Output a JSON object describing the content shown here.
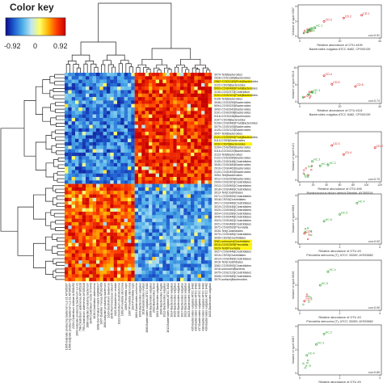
{
  "color_key": {
    "title": "Color key",
    "ticks": [
      "-0.92",
      "0",
      "0.92"
    ],
    "colors": [
      "#0a0a8c",
      "#1f5fd1",
      "#4fb0e8",
      "#bfe6f2",
      "#ffff66",
      "#ffb000",
      "#ff3b00",
      "#c80000"
    ]
  },
  "heatmap": {
    "row_labels": [
      "3079-Tert|Bacteroides",
      "2928-COG1189|Bacteroides",
      "2562~COG1183|Prob|Bacteroides",
      "3122-CSS5|Bacteroides",
      "5003-COG0480|Prob|Bacteroides",
      "3130-COG2373|Clostridium",
      "3101-COG0101|Prob|Bacteroides",
      "5106-Tert|Bacteroides",
      "3046-COG3250|Bacteroides",
      "5094-COG0220|Bacteroides",
      "3092-COG2942|Bacteroides",
      "3101-COG0208|Bacteroides",
      "5118-COG0448|Bacteroides",
      "3107-CSS5|Bacteroides",
      "5108-COG0480|Prob|Bacteroides",
      "3079-COG0100|Bacteroides",
      "4125-COG2123|Bacteroides",
      "3047-Tert|Bacteroides",
      "2121-COG0592|Prob|Bacteroides",
      "5119-CSS5|Bacteroides",
      "3032-CSS5|Bacteroides",
      "3154-COG0580|Bacteroides",
      "5116-COG0222|Bacteroides",
      "3123-Tert|Bacteroides",
      "2122-COG3280|Bacteroides",
      "3130-COG0448|Clostridiales",
      "3040-COG0480|Bacteroides",
      "2010-COG0462|Bacteroides",
      "2120-COG0492|Bacteroides",
      "3054-Tert|Bacteroides",
      "3012-COG2309|Bacteroides",
      "2009-COG2301|Clostridiales",
      "2013-COG0592|Clostridiales",
      "3018-COG0480|Clostridiales",
      "3013-Tert|Clostridiales",
      "2071-COG0592|Clostridiales",
      "3018-CSS5|Clostridiales",
      "3017-COG0480|Clostridiales",
      "3019-COG0446|Clostridiales",
      "3020-COG0462|Clostridiales",
      "3024-COG3280|Clostridiales",
      "3040-COG0448|Clostridiales",
      "3023-COG0462|Clostridiales",
      "3021-COG0480|Clostridiales",
      "3072-COG0592|Prevotella",
      "3030-Tert|Clostridiales",
      "3070-COG0480|Clostridiales",
      "3035-CSS5|Clostridiales",
      "3081-unknown|Clostridiales",
      "3010-COG2309|Prevotella",
      "3029-Tert|Prevotella",
      "3027-COG0448|Clostridiales",
      "3015-CSS5|Clostridiales",
      "3014-COG0480|Clostridiales",
      "3016-Tert|Clostridiales",
      "3082-COG0592|Clostridiales",
      "3016-unknown|Bacteria",
      "3075-COG2123|Clostridiales",
      "3008-COG0480|Clostridiales",
      "3079-surface|Bacteroides"
    ],
    "highlighted_rows": [
      2,
      4,
      6,
      18,
      20,
      48,
      49,
      50
    ],
    "col_labels": [
      "1665-butyrate producing bacterium L2-21 AY305307",
      "1596-butyrate producing bacterium L2-21 AY305307",
      "2153-Clostridium bolteae AJ508452",
      "1601-butyrate producing bacterium L2-21",
      "798-Clostridium aldenense AY305316",
      "799-Clostridium aldenense AY305316",
      "1686-butyrate producing bacterium",
      "1645-Clostridium nexile X73443",
      "1619-Clostridium aldenense",
      "3008-Germinated mutant GQ898317",
      "3007-Dialister invisus AY162469",
      "1600-butyrate producing bacterium",
      "1620-Clostridium lavalense",
      "1640-Ruminococcus obeum",
      "1621-Eubacterium rectale",
      "1622-Clostridium clostridioforme",
      "1002-Prevotella stercorea",
      "1669-Prevotella copri",
      "1607-Prevotella stercorea",
      "1624-Prevotella copri",
      "1664-Bacteroides uniformis",
      "1649-Bacteroides vulgatus",
      "1618-Bacteroides ovatus",
      "1660-Bacteroides vulgatus ATCC 8482",
      "1608-Bacteroides vulgatus",
      "2032-Bacteroides dorei",
      "1604-Bacteroides vulgatus",
      "1609-Bacteroides fragilis",
      "1612-Bacteroides vulgatus",
      "1613-Bacteroides vulgatus ATCC 8482",
      "1614-Bacteroides vulgatus",
      "1615-Bacteroides vulgatus",
      "1616-Bacteroides vulgatus",
      "1617-Bacteroides vulgatus",
      "1622-Bacteroides vulgatus",
      "1623-Bacteroides vulgatus",
      "435-Bacteroides vulgatus ATCC 8482",
      "436-Bacteroides vulgatus ATCC 8482",
      "437-Bacteroides vulgatus ATCC 8482",
      "438-Bacteroides vulgatus ATCC 8482",
      "439-Bacteroides vulgatus ATCC 8482",
      "1625-Bacteroides vulgatus"
    ]
  },
  "scatter_panels": [
    {
      "title": "",
      "ylabel": "Volume of spot 0367",
      "xlabel": "Relative abundance of OTU #439",
      "subtitle": "Bacteroides vulgatus ATCC 8482, CP000139",
      "corr": "cor=0.91",
      "xticks": [
        "0",
        "20",
        "40"
      ],
      "yticks": [
        "0",
        "2",
        "4"
      ],
      "points": [
        {
          "label": "CD.1",
          "color": "#d62020"
        },
        {
          "label": "CD.2",
          "color": "#d62020"
        },
        {
          "label": "CD.3",
          "color": "#d62020"
        },
        {
          "label": "HC.1",
          "color": "#2a9d2a"
        },
        {
          "label": "HC.2",
          "color": "#2a9d2a"
        },
        {
          "label": "HC.3",
          "color": "#2a9d2a"
        }
      ]
    },
    {
      "title": "",
      "ylabel": "Volume of spot 0013",
      "xlabel": "Relative abundance of OTU #114",
      "subtitle": "Bacteroides vulgatus ATCC 8482, CP000139",
      "corr": "cor=0.74",
      "xticks": [
        "0",
        "20",
        "40"
      ],
      "yticks": [
        "0",
        "5",
        "10"
      ],
      "points": [
        {
          "label": "CD.4",
          "color": "#d62020"
        },
        {
          "label": "CD.5",
          "color": "#d62020"
        },
        {
          "label": "CD.6",
          "color": "#d62020"
        },
        {
          "label": "HC.4",
          "color": "#2a9d2a"
        },
        {
          "label": "HC.5",
          "color": "#2a9d2a"
        }
      ]
    },
    {
      "title": "",
      "ylabel": "Volume of spot 0121",
      "xlabel": "Relative abundance of OTU #98",
      "subtitle": "Ruminococcus bicum (genus Blautia), AY305316",
      "corr": "cor=0.79",
      "xticks": [
        "0",
        "20",
        "40",
        "60",
        "80",
        "100",
        "120"
      ],
      "yticks": [
        "0",
        "2",
        "4"
      ],
      "points": [
        {
          "label": "CD.3",
          "color": "#d62020"
        },
        {
          "label": "CD.4",
          "color": "#d62020"
        },
        {
          "label": "CD.2",
          "color": "#d62020"
        },
        {
          "label": "HC.3",
          "color": "#2a9d2a"
        },
        {
          "label": "HC.1",
          "color": "#2a9d2a"
        },
        {
          "label": "HC.2",
          "color": "#2a9d2a"
        }
      ]
    },
    {
      "title": "",
      "ylabel": "Volume of spot 0063",
      "xlabel": "Relative abundance of OTU #3",
      "subtitle": "Prevotella stercorea (T), ATCC 33289, AY533862",
      "corr": "cor=0.92",
      "xticks": [
        "0",
        "2",
        "4"
      ],
      "yticks": [
        "0",
        "2",
        "4"
      ],
      "points": [
        {
          "label": "HC.4",
          "color": "#2a9d2a"
        },
        {
          "label": "HC.5",
          "color": "#2a9d2a"
        },
        {
          "label": "HC.6",
          "color": "#2a9d2a"
        },
        {
          "label": "CD.1",
          "color": "#d62020"
        }
      ]
    },
    {
      "title": "",
      "ylabel": "Volume of spot 0026",
      "xlabel": "Relative abundance of OTU #3",
      "subtitle": "Prevotella stercorea (T), ATCC 33289, AY533862",
      "corr": "cor=0.90",
      "xticks": [
        "0",
        "2",
        "4"
      ],
      "yticks": [
        "0",
        "2",
        "4"
      ],
      "points": [
        {
          "label": "HC.4",
          "color": "#2a9d2a"
        },
        {
          "label": "HC.5",
          "color": "#2a9d2a"
        },
        {
          "label": "CD.2",
          "color": "#d62020"
        }
      ]
    },
    {
      "title": "",
      "ylabel": "Volume of spot 0067",
      "xlabel": "Relative abundance of OTU #3",
      "subtitle": "Prevotella stercorea (T), ATCC 33289, AY533862",
      "corr": "cor=0.89",
      "xticks": [
        "0",
        "2",
        "4"
      ],
      "yticks": [
        "0",
        "2",
        "4"
      ],
      "points": [
        {
          "label": "HC.2",
          "color": "#2a9d2a"
        },
        {
          "label": "HC.3",
          "color": "#2a9d2a"
        },
        {
          "label": "HC.4",
          "color": "#2a9d2a"
        }
      ]
    }
  ],
  "chart_data": {
    "type": "heatmap",
    "title": "",
    "value_range": [
      -0.92,
      0.92
    ],
    "n_rows": 60,
    "n_cols": 42,
    "rows_ref": "heatmap.row_labels",
    "cols_ref": "heatmap.col_labels",
    "blocks": [
      {
        "rows": [
          0,
          32
        ],
        "cols": [
          0,
          20
        ],
        "value": -0.55
      },
      {
        "rows": [
          0,
          32
        ],
        "cols": [
          20,
          42
        ],
        "value": 0.75
      },
      {
        "rows": [
          32,
          60
        ],
        "cols": [
          0,
          20
        ],
        "value": 0.65
      },
      {
        "rows": [
          32,
          60
        ],
        "cols": [
          20,
          42
        ],
        "value": -0.45
      }
    ]
  }
}
